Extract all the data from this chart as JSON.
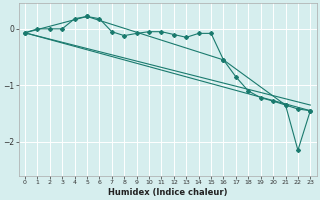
{
  "xlabel": "Humidex (Indice chaleur)",
  "background_color": "#d6eeee",
  "grid_color": "#ffffff",
  "line_color": "#1a7a6e",
  "xlim": [
    -0.5,
    23.5
  ],
  "ylim": [
    -2.6,
    0.45
  ],
  "yticks": [
    0,
    -1,
    -2
  ],
  "xticks": [
    0,
    1,
    2,
    3,
    4,
    5,
    6,
    7,
    8,
    9,
    10,
    11,
    12,
    13,
    14,
    15,
    16,
    17,
    18,
    19,
    20,
    21,
    22,
    23
  ],
  "series1_x": [
    0,
    1,
    2,
    3,
    4,
    5,
    6,
    7,
    8,
    9,
    10,
    11,
    12,
    13,
    14,
    15,
    16,
    17,
    18,
    19,
    20,
    21,
    22,
    23
  ],
  "series1_y": [
    -0.07,
    0.0,
    0.0,
    0.0,
    0.18,
    0.22,
    0.18,
    -0.05,
    -0.12,
    -0.08,
    -0.05,
    -0.05,
    -0.1,
    -0.15,
    -0.08,
    -0.08,
    -0.55,
    -0.85,
    -1.1,
    -1.22,
    -1.28,
    -1.35,
    -1.42,
    -1.45
  ],
  "series2_x": [
    0,
    23
  ],
  "series2_y": [
    -0.07,
    -1.45
  ],
  "series3_x": [
    0,
    5,
    16,
    21,
    22,
    23
  ],
  "series3_y": [
    -0.07,
    0.22,
    -0.55,
    -1.35,
    -2.15,
    -1.45
  ],
  "series4_x": [
    0,
    23
  ],
  "series4_y": [
    -0.07,
    -1.35
  ]
}
